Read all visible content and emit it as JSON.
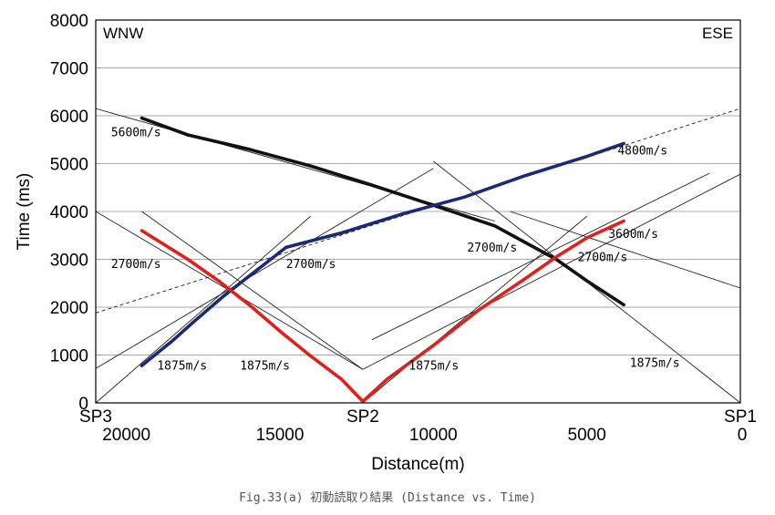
{
  "chart_data": {
    "type": "scatter",
    "title": "",
    "xlabel": "Distance(m)",
    "ylabel": "Time (ms)",
    "x_reversed": true,
    "xlim": [
      0,
      21000
    ],
    "ylim": [
      0,
      8000
    ],
    "grid": true,
    "x_ticks": [
      20000,
      15000,
      10000,
      5000,
      0
    ],
    "x_tick_labels": [
      "20000",
      "15000",
      "10000",
      "5000",
      "0"
    ],
    "y_ticks": [
      0,
      1000,
      2000,
      3000,
      4000,
      5000,
      6000,
      7000,
      8000
    ],
    "y_tick_labels": [
      "0",
      "1000",
      "2000",
      "3000",
      "4000",
      "5000",
      "6000",
      "7000",
      "8000"
    ],
    "shot_points": [
      {
        "label": "SP3",
        "x": 21000
      },
      {
        "label": "SP2",
        "x": 12300
      },
      {
        "label": "SP1",
        "x": 0
      }
    ],
    "corner_labels": {
      "left": "WNW",
      "right": "ESE"
    },
    "colors": {
      "black_series": "#111111",
      "blue_series": "#1a2a78",
      "red_series": "#e0201c",
      "fit_line": "#222222"
    },
    "series": [
      {
        "points": [
          [
            19500,
            5950
          ],
          [
            18000,
            5600
          ],
          [
            16000,
            5300
          ],
          [
            14000,
            4950
          ],
          [
            12000,
            4550
          ],
          [
            10000,
            4130
          ],
          [
            8000,
            3700
          ],
          [
            6000,
            3000
          ],
          [
            5000,
            2550
          ],
          [
            3800,
            2050
          ]
        ]
      },
      {
        "points": [
          [
            19500,
            780
          ],
          [
            18500,
            1300
          ],
          [
            17800,
            1700
          ],
          [
            16800,
            2250
          ],
          [
            16000,
            2650
          ],
          [
            15300,
            3000
          ],
          [
            14800,
            3250
          ],
          [
            13000,
            3550
          ],
          [
            11000,
            3950
          ],
          [
            9000,
            4300
          ],
          [
            7000,
            4750
          ],
          [
            5000,
            5150
          ],
          [
            3800,
            5420
          ]
        ]
      },
      {
        "points": [
          [
            19500,
            3600
          ],
          [
            18000,
            3000
          ],
          [
            17000,
            2550
          ],
          [
            16000,
            2050
          ],
          [
            15000,
            1500
          ],
          [
            14000,
            980
          ],
          [
            13000,
            500
          ],
          [
            12300,
            30
          ],
          [
            11500,
            500
          ],
          [
            10000,
            1200
          ],
          [
            8500,
            1950
          ],
          [
            7000,
            2600
          ],
          [
            6000,
            3050
          ],
          [
            5000,
            3450
          ],
          [
            3800,
            3800
          ]
        ]
      }
    ],
    "fit_lines": [
      {
        "label": "5600m/s",
        "from": [
          21000,
          6150
        ],
        "to": [
          8000,
          3800
        ],
        "dashed": false
      },
      {
        "label": "4800m/s",
        "from": [
          21000,
          1880
        ],
        "to": [
          0,
          6150
        ],
        "dashed": true
      },
      {
        "label": "1875m/s",
        "from": [
          21000,
          0
        ],
        "to": [
          14000,
          3900
        ],
        "dashed": false
      },
      {
        "label": "2700m/s",
        "from": [
          21000,
          720
        ],
        "to": [
          10000,
          4900
        ],
        "dashed": false
      },
      {
        "label": "2700m/s",
        "from": [
          21000,
          4000
        ],
        "to": [
          12300,
          700
        ],
        "dashed": false
      },
      {
        "label": "1875m/s",
        "from": [
          19500,
          4000
        ],
        "to": [
          12300,
          700
        ],
        "dashed": false
      },
      {
        "label": "1875m/s",
        "from": [
          12300,
          0
        ],
        "to": [
          5000,
          3900
        ],
        "dashed": false
      },
      {
        "label": "2700m/s",
        "from": [
          12000,
          1320
        ],
        "to": [
          1000,
          4800
        ],
        "dashed": false
      },
      {
        "label": "3600m/s",
        "from": [
          12300,
          700
        ],
        "to": [
          0,
          4780
        ],
        "dashed": false
      },
      {
        "label": "2700m/s",
        "from": [
          7500,
          4000
        ],
        "to": [
          0,
          2400
        ],
        "dashed": false
      },
      {
        "label": "1875m/s",
        "from": [
          10000,
          5050
        ],
        "to": [
          0,
          0
        ],
        "dashed": false
      }
    ],
    "annotations": [
      {
        "text": "5600m/s",
        "x": 20500,
        "y": 5570
      },
      {
        "text": "4800m/s",
        "x": 4000,
        "y": 5190
      },
      {
        "text": "3600m/s",
        "x": 4300,
        "y": 3450
      },
      {
        "text": "2700m/s",
        "x": 20500,
        "y": 2820
      },
      {
        "text": "2700m/s",
        "x": 14800,
        "y": 2820
      },
      {
        "text": "2700m/s",
        "x": 8900,
        "y": 3160
      },
      {
        "text": "2700m/s",
        "x": 5300,
        "y": 2960
      },
      {
        "text": "1875m/s",
        "x": 19000,
        "y": 700
      },
      {
        "text": "1875m/s",
        "x": 16300,
        "y": 700
      },
      {
        "text": "1875m/s",
        "x": 10800,
        "y": 700
      },
      {
        "text": "1875m/s",
        "x": 3600,
        "y": 750
      }
    ]
  },
  "caption": "Fig.33(a)  初動読取り結果 (Distance vs. Time)"
}
